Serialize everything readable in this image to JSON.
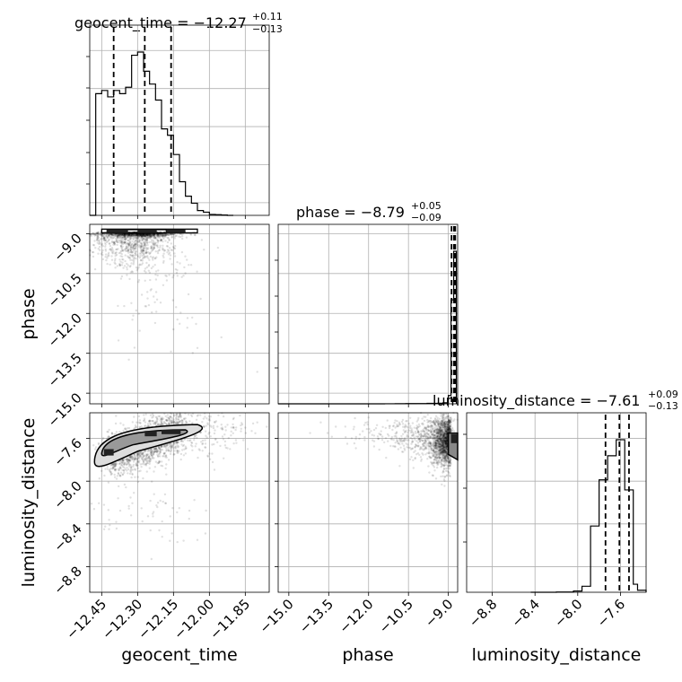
{
  "chart_data": {
    "type": "corner",
    "parameters": [
      "geocent_time",
      "phase",
      "luminosity_distance"
    ],
    "titles": [
      {
        "param": "geocent_time",
        "prefix": "geocent_time = ",
        "value": "−12.27",
        "plus": "+0.11",
        "minus": "−0.13",
        "q16": -12.4,
        "q50": -12.27,
        "q84": -12.16
      },
      {
        "param": "phase",
        "prefix": "phase = ",
        "value": "−8.79",
        "plus": "+0.05",
        "minus": "−0.09",
        "q16": -8.88,
        "q50": -8.79,
        "q84": -8.74
      },
      {
        "param": "luminosity_distance",
        "prefix": "luminosity_distance = ",
        "value": "−7.61",
        "plus": "+0.09",
        "minus": "−0.13",
        "q16": -7.74,
        "q50": -7.61,
        "q84": -7.52
      }
    ],
    "ranges": {
      "geocent_time": [
        -12.5,
        -11.75
      ],
      "phase": [
        -15.4,
        -8.65
      ],
      "luminosity_distance": [
        -9.04,
        -7.36
      ]
    },
    "ticks": {
      "geocent_time": {
        "values": [
          -12.45,
          -12.3,
          -12.15,
          -12.0,
          -11.85
        ],
        "labels": [
          "−12.45",
          "−12.30",
          "−12.15",
          "−12.00",
          "−11.85"
        ]
      },
      "phase": {
        "values": [
          -15.0,
          -13.5,
          -12.0,
          -10.5,
          -9.0
        ],
        "labels": [
          "−15.0",
          "−13.5",
          "−12.0",
          "−10.5",
          "−9.0"
        ]
      },
      "luminosity_distance": {
        "values": [
          -8.8,
          -8.4,
          -8.0,
          -7.6
        ],
        "labels": [
          "−8.8",
          "−8.4",
          "−8.0",
          "−7.6"
        ]
      }
    },
    "histograms": {
      "geocent_time": {
        "edges": [
          -12.5,
          -12.475,
          -12.45,
          -12.425,
          -12.4,
          -12.375,
          -12.35,
          -12.325,
          -12.3,
          -12.275,
          -12.25,
          -12.225,
          -12.2,
          -12.175,
          -12.15,
          -12.125,
          -12.1,
          -12.075,
          -12.05,
          -12.025,
          -12.0,
          -11.975,
          -11.95,
          -11.925,
          -11.9
        ],
        "counts": [
          0,
          380,
          390,
          370,
          390,
          380,
          400,
          500,
          510,
          450,
          410,
          360,
          270,
          250,
          190,
          105,
          60,
          38,
          15,
          10,
          3,
          2,
          1,
          0
        ]
      },
      "phase": {
        "edges": [
          -15.4,
          -11.4,
          -11.0,
          -10.6,
          -10.2,
          -9.8,
          -9.4,
          -9.2,
          -9.0,
          -8.9,
          -8.8,
          -8.7
        ],
        "counts": [
          0,
          1,
          2,
          3,
          4,
          6,
          8,
          15,
          120,
          1500,
          2200
        ]
      },
      "luminosity_distance": {
        "edges": [
          -8.44,
          -8.2,
          -8.04,
          -7.96,
          -7.88,
          -7.8,
          -7.72,
          -7.64,
          -7.56,
          -7.48,
          -7.44,
          -7.36
        ],
        "counts": [
          0,
          1,
          6,
          30,
          330,
          560,
          680,
          760,
          510,
          40,
          10
        ]
      }
    },
    "scatter": {
      "geocent_time_vs_phase": "dense band near phase −9.0, sparse scatter down to −14.6",
      "geocent_time_vs_luminosity_distance": "positively correlated cloud from (−12.45, −7.8) to (−12.1, −7.5)",
      "phase_vs_luminosity_distance": "dense cluster near phase −9.0, luminosity_distance −7.6"
    },
    "grid": true
  }
}
